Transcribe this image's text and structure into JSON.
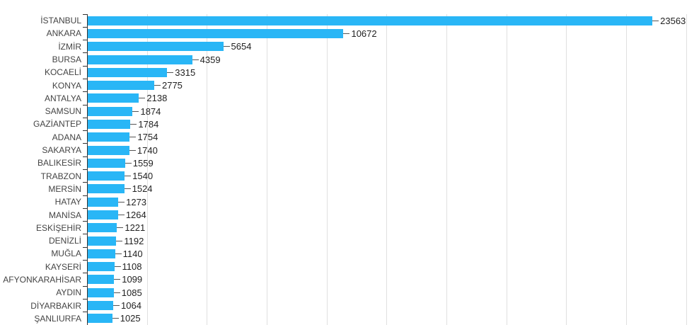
{
  "chart_data": {
    "type": "bar",
    "orientation": "horizontal",
    "title": "",
    "xlabel": "",
    "ylabel": "",
    "legend_position": "none",
    "grid": true,
    "grid_step": 2500,
    "grid_max": 25000,
    "xlim": [
      0,
      25540
    ],
    "value_labels": "shown as annotations at bar ends",
    "bar_color": "#29b6f6",
    "gridline_color": "#e0e0e0",
    "axis_color": "#333333",
    "categories": [
      "İSTANBUL",
      "ANKARA",
      "İZMİR",
      "BURSA",
      "KOCAELİ",
      "KONYA",
      "ANTALYA",
      "SAMSUN",
      "GAZİANTEP",
      "ADANA",
      "SAKARYA",
      "BALIKESİR",
      "TRABZON",
      "MERSİN",
      "HATAY",
      "MANİSA",
      "ESKİŞEHİR",
      "DENİZLİ",
      "MUĞLA",
      "KAYSERİ",
      "AFYONKARAHİSAR",
      "AYDIN",
      "DİYARBAKIR",
      "ŞANLIURFA"
    ],
    "values": [
      23563,
      10672,
      5654,
      4359,
      3315,
      2775,
      2138,
      1874,
      1784,
      1754,
      1740,
      1559,
      1540,
      1524,
      1273,
      1264,
      1221,
      1192,
      1140,
      1108,
      1099,
      1085,
      1064,
      1025
    ]
  }
}
